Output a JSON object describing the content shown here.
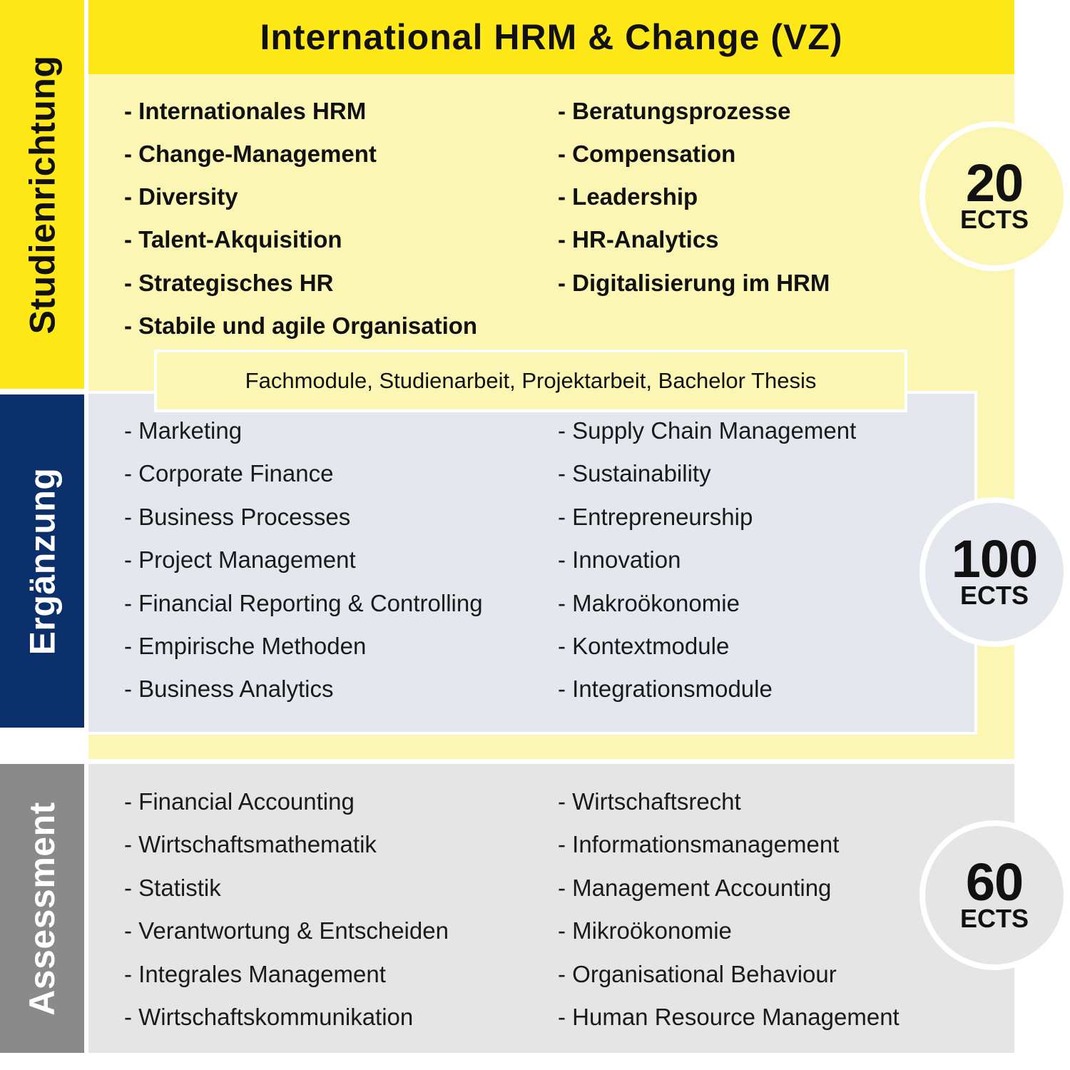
{
  "sidebar": {
    "studienrichtung": "Studienrichtung",
    "ergaenzung": "Ergänzung",
    "assessment": "Assessment"
  },
  "title": "International HRM & Change (VZ)",
  "studienrichtung": {
    "left": [
      "- Internationales HRM",
      "- Change-Management",
      "- Diversity",
      "- Talent-Akquisition",
      "- Strategisches HR",
      "- Stabile und agile Organisation"
    ],
    "right": [
      "- Beratungsprozesse",
      "- Compensation",
      "- Leadership",
      "- HR-Analytics",
      "- Digitalisierung im HRM"
    ],
    "ects": {
      "value": "20",
      "unit": "ECTS"
    }
  },
  "fachmodule": "Fachmodule, Studienarbeit, Projektarbeit, Bachelor Thesis",
  "ergaenzung": {
    "left": [
      "- Marketing",
      "- Corporate Finance",
      "- Business Processes",
      "- Project Management",
      "- Financial Reporting & Controlling",
      "- Empirische Methoden",
      "- Business Analytics"
    ],
    "right": [
      "- Supply Chain Management",
      "- Sustainability",
      "- Entrepreneurship",
      "- Innovation",
      "- Makroökonomie",
      "- Kontextmodule",
      "- Integrationsmodule"
    ],
    "ects": {
      "value": "100",
      "unit": "ECTS"
    }
  },
  "assessment": {
    "left": [
      "- Financial Accounting",
      "- Wirtschaftsmathematik",
      "- Statistik",
      "- Verantwortung & Entscheiden",
      "- Integrales Management",
      "- Wirtschaftskommunikation"
    ],
    "right": [
      "- Wirtschaftsrecht",
      "- Informationsmanagement",
      "- Management Accounting",
      "- Mikroökonomie",
      "- Organisational Behaviour",
      "- Human Resource Management"
    ],
    "ects": {
      "value": "60",
      "unit": "ECTS"
    }
  },
  "colors": {
    "yellow": "#ffe817",
    "light_yellow": "#fbf6b4",
    "navy": "#0b2f6b",
    "light_blue": "#e4e8ee",
    "grey": "#8a8a8a",
    "light_grey": "#e5e5e5"
  }
}
